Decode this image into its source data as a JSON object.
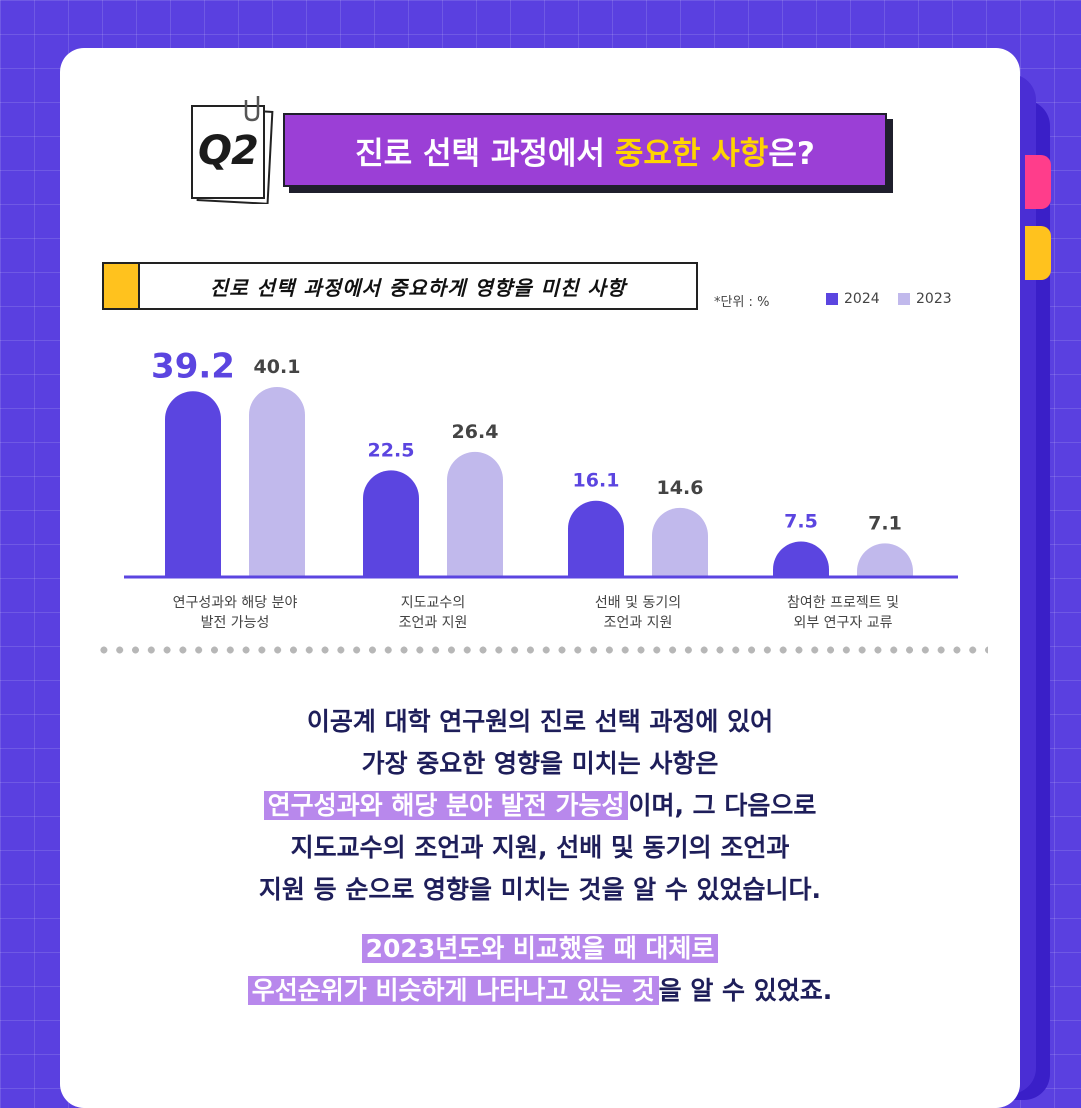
{
  "header": {
    "q_label": "Q2",
    "title_pre": "진로 선택 과정에서",
    "title_highlight": "중요한 사항",
    "title_post": "은?"
  },
  "subtitle": "진로 선택 과정에서 중요하게 영향을 미친 사항",
  "unit_label": "*단위 : %",
  "colors": {
    "series_2024": "#5b45e0",
    "series_2023": "#c1b9ec",
    "accent_yellow": "#ffd400",
    "banner": "#9b3fd6"
  },
  "chart_data": {
    "type": "bar",
    "categories": [
      [
        "연구성과와 해당 분야",
        "발전 가능성"
      ],
      [
        "지도교수의",
        "조언과 지원"
      ],
      [
        "선배 및 동기의",
        "조언과 지원"
      ],
      [
        "참여한 프로젝트 및",
        "외부 연구자 교류"
      ]
    ],
    "series": [
      {
        "name": "2024",
        "values": [
          39.2,
          22.5,
          16.1,
          7.5
        ]
      },
      {
        "name": "2023",
        "values": [
          40.1,
          26.4,
          14.6,
          7.1
        ]
      }
    ],
    "unit": "%",
    "ylim": [
      0,
      45
    ],
    "grid": false,
    "legend": "top-right"
  },
  "summary": {
    "line1": "이공계 대학 연구원의 진로 선택 과정에 있어",
    "line2": "가장 중요한 영향을 미치는 사항은",
    "line3_highlight": "연구성과와 해당 분야 발전 가능성",
    "line3_rest": "이며, 그 다음으로",
    "line4": "지도교수의 조언과 지원, 선배 및 동기의 조언과",
    "line5": "지원 등 순으로 영향을 미치는 것을 알 수 있었습니다.",
    "line6_highlight": "2023년도와 비교했을 때 대체로",
    "line7_highlight": "우선순위가 비슷하게 나타나고 있는 것",
    "line7_rest": "을 알 수 있었죠."
  }
}
